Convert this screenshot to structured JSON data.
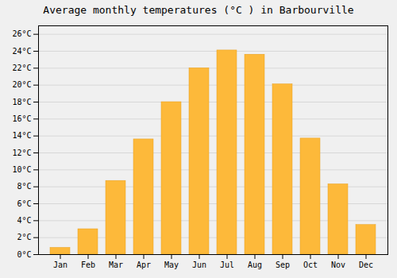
{
  "chart_data": {
    "type": "bar",
    "title": "Average monthly temperatures (°C ) in Barbourville",
    "categories": [
      "Jan",
      "Feb",
      "Mar",
      "Apr",
      "May",
      "Jun",
      "Jul",
      "Aug",
      "Sep",
      "Oct",
      "Nov",
      "Dec"
    ],
    "values": [
      0.8,
      3.0,
      8.7,
      13.6,
      18.0,
      22.0,
      24.1,
      23.6,
      20.1,
      13.7,
      8.3,
      3.5
    ],
    "color": "#FDB93A",
    "ylim": [
      0,
      27
    ],
    "yticks": [
      {
        "value": 0,
        "label": "0°C"
      },
      {
        "value": 2,
        "label": "2°C"
      },
      {
        "value": 4,
        "label": "4°C"
      },
      {
        "value": 6,
        "label": "6°C"
      },
      {
        "value": 8,
        "label": "8°C"
      },
      {
        "value": 10,
        "label": "10°C"
      },
      {
        "value": 12,
        "label": "12°C"
      },
      {
        "value": 14,
        "label": "14°C"
      },
      {
        "value": 16,
        "label": "16°C"
      },
      {
        "value": 18,
        "label": "18°C"
      },
      {
        "value": 20,
        "label": "20°C"
      },
      {
        "value": 22,
        "label": "22°C"
      },
      {
        "value": 24,
        "label": "24°C"
      },
      {
        "value": 26,
        "label": "26°C"
      }
    ],
    "grid": true
  }
}
